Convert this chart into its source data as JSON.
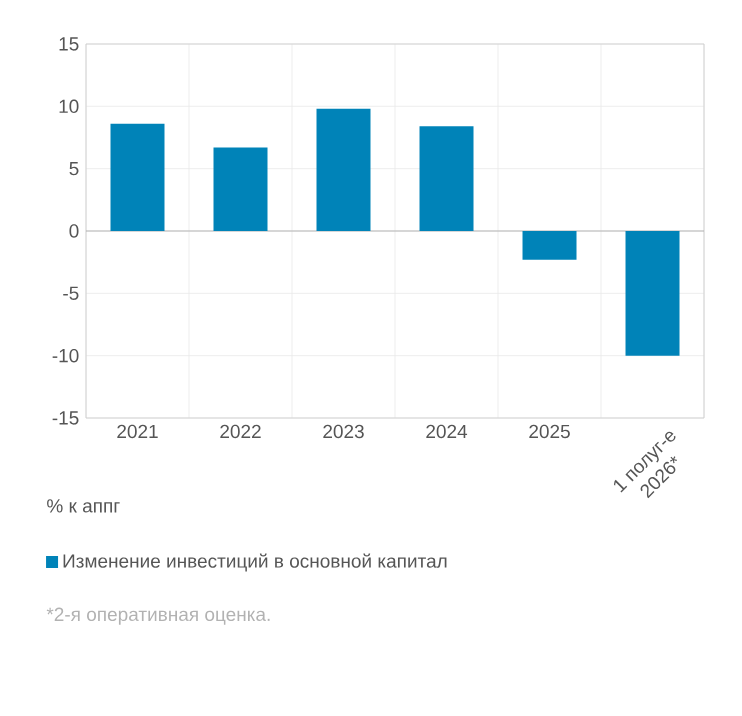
{
  "chart_data": {
    "type": "bar",
    "categories": [
      "2021",
      "2022",
      "2023",
      "2024",
      "2025",
      "1 полуг-е 2026*"
    ],
    "series": [
      {
        "name": "Изменение инвестиций в основной капитал",
        "color": "#0083b8",
        "values": [
          8.6,
          6.7,
          9.8,
          8.4,
          -2.3,
          -10.0
        ]
      }
    ],
    "ylabel": "% к аппг",
    "ylim": [
      -15,
      15
    ],
    "yticks": [
      -15,
      -10,
      -5,
      0,
      5,
      10,
      15
    ],
    "grid": true,
    "legend": "bottom",
    "annotations": [
      "*2-я оперативная оценка."
    ]
  }
}
